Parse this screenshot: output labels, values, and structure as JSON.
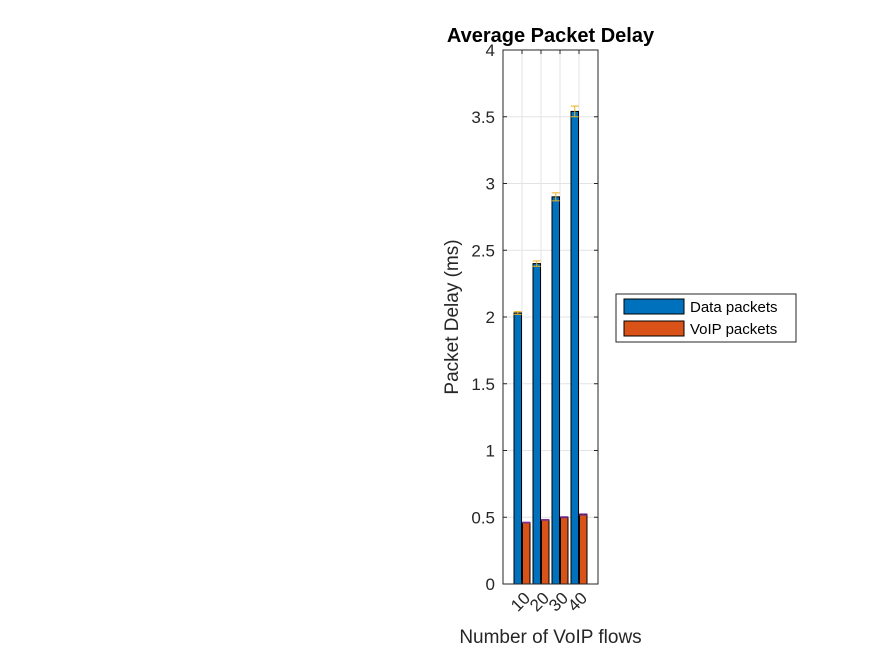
{
  "chart_data": {
    "type": "bar",
    "title": "Average Packet Delay",
    "xlabel": "Number of VoIP flows",
    "ylabel": "Packet Delay (ms)",
    "categories": [
      "10",
      "20",
      "30",
      "40"
    ],
    "ylim": [
      0,
      4
    ],
    "yticks": [
      "0",
      "0.5",
      "1",
      "1.5",
      "2",
      "2.5",
      "3",
      "3.5",
      "4"
    ],
    "grid": true,
    "legend_position": "outside-right",
    "series": [
      {
        "name": "Data packets",
        "values": [
          2.03,
          2.4,
          2.9,
          3.54
        ],
        "error": [
          0.01,
          0.02,
          0.03,
          0.04
        ],
        "color": "#0072BD",
        "error_color": "#EDB120"
      },
      {
        "name": "VoIP packets",
        "values": [
          0.46,
          0.48,
          0.5,
          0.52
        ],
        "error": [
          0.003,
          0.003,
          0.004,
          0.005
        ],
        "color": "#D95319",
        "error_color": "#7E2F8E"
      }
    ]
  }
}
